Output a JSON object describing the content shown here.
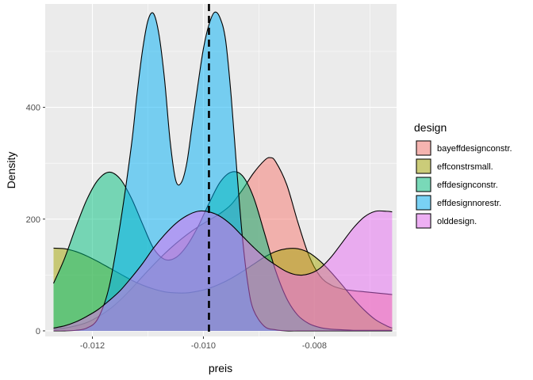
{
  "chart_data": {
    "type": "area",
    "subtype": "density",
    "xlabel": "preis",
    "ylabel": "Density",
    "xlim": [
      -0.01285,
      -0.00652
    ],
    "ylim": [
      -10,
      585
    ],
    "x_ticks": [
      -0.012,
      -0.01,
      -0.008
    ],
    "x_tick_labels": [
      "-0.012",
      "-0.010",
      "-0.008"
    ],
    "y_ticks": [
      0,
      200,
      400
    ],
    "y_tick_labels": [
      "0",
      "200",
      "400"
    ],
    "grid": true,
    "background": "#ebebeb",
    "legend_title": "design",
    "legend_position": "right",
    "vline": {
      "x": -0.0099,
      "style": "dashed",
      "color": "#000000"
    },
    "series": [
      {
        "name": "bayeffdesignconstr.",
        "color": "#F8766D",
        "x": [
          -0.0127,
          -0.0125,
          -0.0123,
          -0.0121,
          -0.0119,
          -0.0117,
          -0.0115,
          -0.0113,
          -0.0111,
          -0.0109,
          -0.0107,
          -0.0105,
          -0.0103,
          -0.0101,
          -0.0099,
          -0.0097,
          -0.0095,
          -0.0093,
          -0.0091,
          -0.0089,
          -0.0088,
          -0.0087,
          -0.0085,
          -0.0083,
          -0.0081,
          -0.0079,
          -0.0077,
          -0.0075,
          -0.0073,
          -0.0071,
          -0.0069,
          -0.0067,
          -0.0066
        ],
        "y": [
          3,
          5,
          9,
          15,
          25,
          38,
          55,
          75,
          97,
          118,
          138,
          156,
          172,
          186,
          198,
          210,
          226,
          252,
          282,
          305,
          310,
          303,
          262,
          195,
          135,
          98,
          82,
          75,
          72,
          70,
          68,
          66,
          65
        ]
      },
      {
        "name": "effconstrsmall.",
        "color": "#A3A500",
        "x": [
          -0.0127,
          -0.0125,
          -0.0123,
          -0.0121,
          -0.0119,
          -0.0117,
          -0.0115,
          -0.0113,
          -0.0111,
          -0.0109,
          -0.0107,
          -0.0105,
          -0.0103,
          -0.0101,
          -0.0099,
          -0.0097,
          -0.0095,
          -0.0093,
          -0.0091,
          -0.0089,
          -0.0087,
          -0.0085,
          -0.0083,
          -0.0081,
          -0.0079,
          -0.0077,
          -0.0075,
          -0.0073,
          -0.0071,
          -0.0069,
          -0.0067,
          -0.0066
        ],
        "y": [
          148,
          147,
          142,
          134,
          124,
          113,
          102,
          91,
          82,
          75,
          70,
          68,
          68,
          71,
          76,
          84,
          94,
          106,
          119,
          132,
          142,
          147,
          147,
          140,
          125,
          105,
          82,
          58,
          37,
          20,
          9,
          5
        ]
      },
      {
        "name": "effdesignconstr.",
        "color": "#00BF7D",
        "x": [
          -0.0127,
          -0.0125,
          -0.0123,
          -0.0121,
          -0.0119,
          -0.0117,
          -0.0115,
          -0.0113,
          -0.0111,
          -0.0109,
          -0.0107,
          -0.0105,
          -0.0103,
          -0.0101,
          -0.0099,
          -0.0097,
          -0.0095,
          -0.0093,
          -0.0091,
          -0.0089,
          -0.0087,
          -0.0085,
          -0.0083,
          -0.0081,
          -0.0079,
          -0.0077,
          -0.0075,
          -0.0073,
          -0.0071,
          -0.0069,
          -0.0067,
          -0.0066
        ],
        "y": [
          85,
          130,
          185,
          235,
          270,
          284,
          272,
          238,
          192,
          148,
          128,
          131,
          152,
          186,
          228,
          266,
          284,
          278,
          240,
          175,
          108,
          58,
          28,
          13,
          6,
          3,
          2,
          1,
          1,
          1,
          1,
          1
        ]
      },
      {
        "name": "effdesignnorestr.",
        "color": "#00B0F6",
        "x": [
          -0.0127,
          -0.0125,
          -0.0123,
          -0.0121,
          -0.0119,
          -0.0117,
          -0.0115,
          -0.0113,
          -0.0112,
          -0.0111,
          -0.011,
          -0.0109,
          -0.0108,
          -0.0107,
          -0.0106,
          -0.0105,
          -0.0104,
          -0.0103,
          -0.0102,
          -0.0101,
          -0.01,
          -0.0099,
          -0.0098,
          -0.0097,
          -0.0096,
          -0.0095,
          -0.0094,
          -0.0093,
          -0.0092,
          -0.0091,
          -0.0089,
          -0.0087,
          -0.0085,
          -0.0083,
          -0.0081,
          -0.0079,
          -0.0077,
          -0.0075,
          -0.0073,
          -0.0071,
          -0.0069,
          -0.0067,
          -0.0066
        ],
        "y": [
          0,
          0,
          1,
          5,
          22,
          78,
          190,
          330,
          420,
          500,
          555,
          568,
          530,
          450,
          340,
          270,
          265,
          300,
          370,
          440,
          505,
          548,
          570,
          560,
          520,
          420,
          290,
          170,
          85,
          38,
          8,
          2,
          0,
          0,
          0,
          0,
          0,
          0,
          0,
          0,
          0,
          0,
          0
        ]
      },
      {
        "name": "olddesign.",
        "color": "#E76BF3",
        "x": [
          -0.0127,
          -0.0125,
          -0.0123,
          -0.0121,
          -0.0119,
          -0.0117,
          -0.0115,
          -0.0113,
          -0.0111,
          -0.0109,
          -0.0107,
          -0.0105,
          -0.0103,
          -0.0101,
          -0.0099,
          -0.0097,
          -0.0095,
          -0.0093,
          -0.0091,
          -0.0089,
          -0.0087,
          -0.0085,
          -0.0083,
          -0.0081,
          -0.0079,
          -0.0077,
          -0.0075,
          -0.0073,
          -0.0071,
          -0.0069,
          -0.0067,
          -0.0066
        ],
        "y": [
          5,
          9,
          16,
          26,
          38,
          54,
          72,
          95,
          120,
          148,
          172,
          192,
          206,
          214,
          213,
          205,
          190,
          170,
          150,
          132,
          118,
          106,
          100,
          102,
          112,
          132,
          158,
          184,
          204,
          214,
          214,
          213
        ]
      }
    ]
  }
}
